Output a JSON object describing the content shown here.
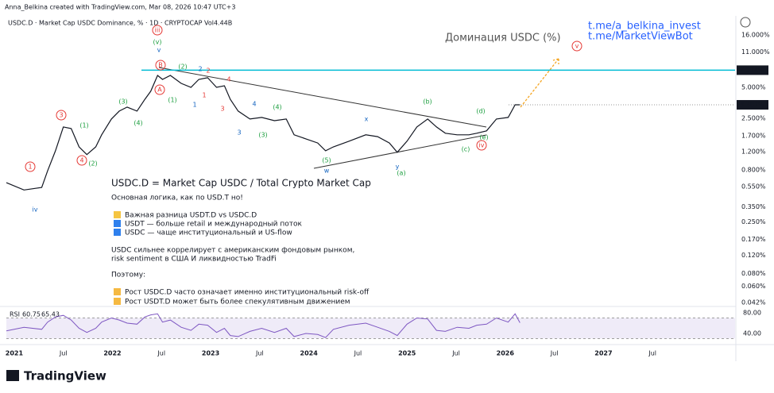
{
  "chart_data": {
    "type": "line",
    "credit": "Anna_Belkina created with TradingView.com, Mar 08, 2026 10:47 UTC+3",
    "title": "USDC.D · Market Cap USDC Dominance, % · 1D · CRYPTOCAP  Vol4.44B",
    "subtitle": "Доминация USDC (%)",
    "links": [
      "t.me/a_belkina_invest",
      "t.me/MarketViewBot"
    ],
    "notes": [
      "USDC.D = Market Cap USDC / Total Crypto Market Cap",
      "Основная логика, как по USD.T      но!",
      "Важная разница USDT.D vs USDC.D",
      "USDT — больше retail и международный поток",
      "USDC — чаще институциональный и US-flow",
      "USDC сильнее коррелирует с американским фондовым рынком,",
      "risk sentiment в США И ликвидностью TradFi",
      "Поэтому:",
      "Рост USDC.D часто означает именно институциональный risk-off",
      "Рост USDT.D может быть более спекулятивным движением"
    ],
    "wave_labels": [
      "(v)",
      "iii",
      "v",
      "(2)",
      "2",
      "2",
      "1",
      "3",
      "(1)",
      "4",
      "(2)",
      "(3)",
      "(4)",
      "A",
      "B",
      "(1)",
      "1",
      "1",
      "4",
      "3",
      "4",
      "(4)",
      "3",
      "(3)",
      "x",
      "w",
      "(5)",
      "y",
      "(a)",
      "(b)",
      "(c)",
      "(d)",
      "(e)",
      "iv",
      "iv",
      "v"
    ],
    "log_scale": true,
    "grid": false,
    "series": [
      {
        "name": "USDC.D",
        "color": "#131722",
        "x": [
          2020.92,
          2021.1,
          2021.28,
          2021.34,
          2021.42,
          2021.5,
          2021.58,
          2021.66,
          2021.74,
          2021.83,
          2021.89,
          2021.99,
          2022.07,
          2022.15,
          2022.25,
          2022.33,
          2022.39,
          2022.46,
          2022.51,
          2022.59,
          2022.7,
          2022.8,
          2022.88,
          2022.97,
          2023.06,
          2023.14,
          2023.2,
          2023.28,
          2023.4,
          2023.52,
          2023.65,
          2023.77,
          2023.85,
          2023.97,
          2024.09,
          2024.17,
          2024.25,
          2024.41,
          2024.58,
          2024.7,
          2024.82,
          2024.9,
          2025.0,
          2025.1,
          2025.21,
          2025.3,
          2025.39,
          2025.51,
          2025.63,
          2025.71,
          2025.81,
          2025.91,
          2026.03,
          2026.1,
          2026.15
        ],
        "values": [
          0.6,
          0.51,
          0.54,
          0.78,
          1.22,
          2.07,
          2.0,
          1.33,
          1.12,
          1.33,
          1.74,
          2.47,
          2.95,
          3.22,
          2.95,
          3.83,
          4.58,
          6.51,
          5.96,
          6.51,
          5.46,
          5.0,
          5.96,
          6.18,
          5.0,
          5.18,
          3.83,
          2.95,
          2.47,
          2.56,
          2.38,
          2.47,
          1.74,
          1.59,
          1.45,
          1.22,
          1.33,
          1.51,
          1.74,
          1.67,
          1.45,
          1.18,
          1.51,
          2.07,
          2.47,
          2.07,
          1.8,
          1.74,
          1.74,
          1.8,
          1.9,
          2.47,
          2.56,
          3.39,
          3.387
        ]
      }
    ],
    "xlim": [
      2020.92,
      2028.34
    ],
    "xticks": [
      2021,
      {
        "value": 2021.5,
        "label": "Jul"
      },
      2022,
      {
        "value": 2022.5,
        "label": "Jul"
      },
      2023,
      {
        "value": 2023.5,
        "label": "Jul"
      },
      2024,
      {
        "value": 2024.5,
        "label": "Jul"
      },
      2025,
      {
        "value": 2025.5,
        "label": "Jul"
      },
      2026,
      {
        "value": 2026.5,
        "label": "Jul"
      },
      2027,
      {
        "value": 2027.5,
        "label": "Jul"
      }
    ],
    "ylim": [
      0.039,
      17.8
    ],
    "yticks": [
      {
        "value": 16,
        "label": "16.000%"
      },
      {
        "value": 11,
        "label": "11.000%"
      },
      {
        "value": 5,
        "label": "5.000%"
      },
      {
        "value": 2.5,
        "label": "2.500%"
      },
      {
        "value": 1.7,
        "label": "1.700%"
      },
      {
        "value": 1.2,
        "label": "1.200%"
      },
      {
        "value": 0.8,
        "label": "0.800%"
      },
      {
        "value": 0.55,
        "label": "0.550%"
      },
      {
        "value": 0.35,
        "label": "0.350%"
      },
      {
        "value": 0.25,
        "label": "0.250%"
      },
      {
        "value": 0.17,
        "label": "0.170%"
      },
      {
        "value": 0.12,
        "label": "0.120%"
      },
      {
        "value": 0.08,
        "label": "0.080%"
      },
      {
        "value": 0.06,
        "label": "0.060%"
      },
      {
        "value": 0.042,
        "label": "0.042%"
      }
    ],
    "price_line": {
      "value": 7.314,
      "label": "7.314%",
      "color": "#00bcd4"
    },
    "last_price": {
      "value": 3.387,
      "label": "3.387%"
    },
    "rsi": {
      "name": "RSI",
      "readout": [
        "60.75",
        "65.43"
      ],
      "color": "#7e57c2",
      "values": [
        45,
        52,
        48,
        62,
        72,
        75,
        66,
        50,
        42,
        50,
        62,
        70,
        66,
        60,
        58,
        72,
        76,
        78,
        62,
        66,
        52,
        46,
        58,
        56,
        42,
        50,
        36,
        34,
        44,
        50,
        42,
        50,
        34,
        40,
        38,
        32,
        48,
        56,
        60,
        52,
        44,
        36,
        58,
        70,
        68,
        46,
        44,
        52,
        50,
        56,
        58,
        70,
        62,
        78,
        60.75
      ],
      "ylim": [
        21.5,
        89.2
      ],
      "yticks": [
        {
          "value": 80,
          "label": "80.00"
        },
        {
          "value": 40,
          "label": "40.00"
        }
      ],
      "band": [
        30,
        70
      ]
    },
    "brand": "TradingView"
  }
}
